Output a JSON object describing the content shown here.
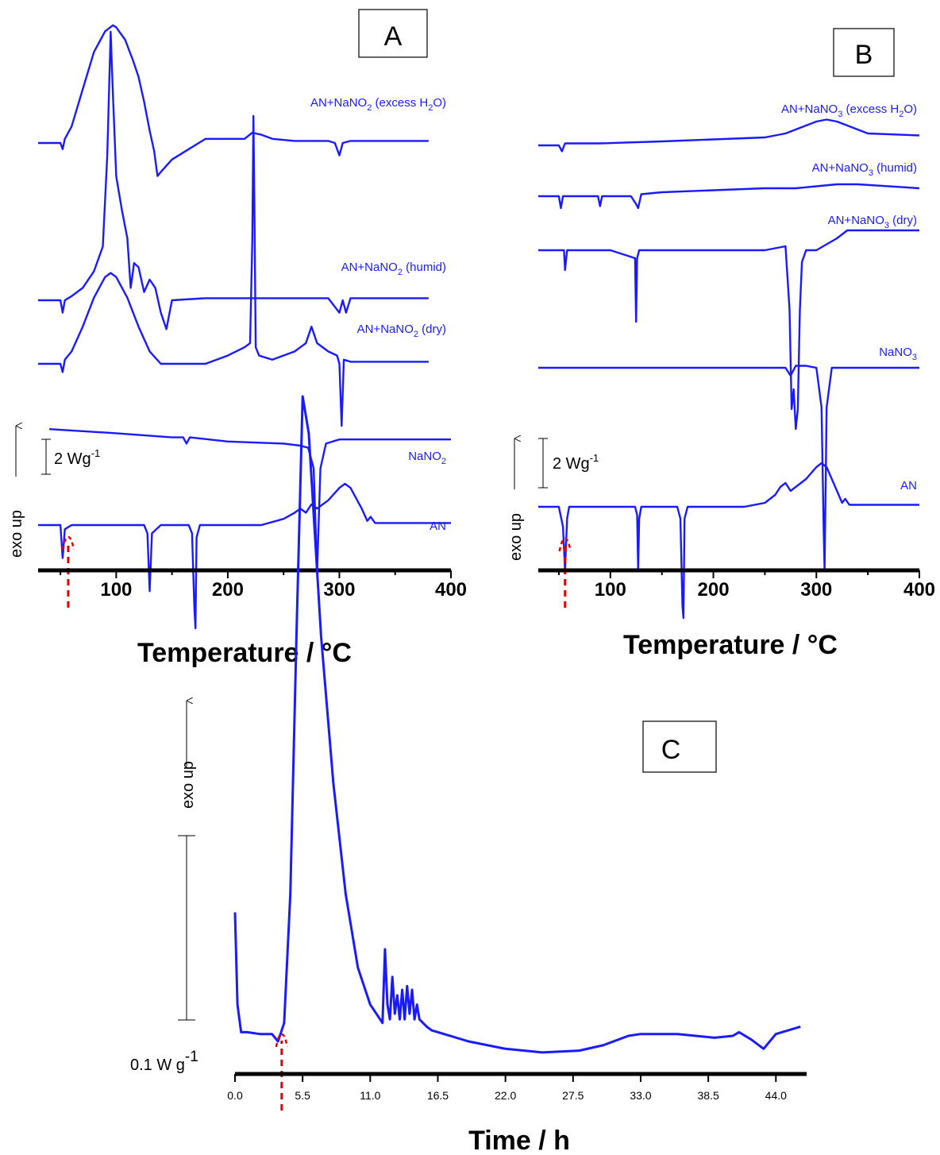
{
  "colors": {
    "trace": "#1a1aff",
    "onset_arrow": "#e00000",
    "axis": "#000000"
  },
  "panels": {
    "A": {
      "letter": "A",
      "xlabel": "Temperature / °C",
      "scale_bar": "2 Wg",
      "scale_sup": "-1",
      "exo": "exo up"
    },
    "B": {
      "letter": "B",
      "xlabel": "Temperature / °C",
      "scale_bar": "2 Wg",
      "scale_sup": "-1",
      "exo": "exo up"
    },
    "C": {
      "letter": "C",
      "xlabel": "Time / h",
      "scale_bar": "0.1 W g",
      "scale_sup": "-1",
      "exo": "exo up"
    }
  },
  "series_labels": {
    "A": [
      {
        "id": "a_excess",
        "main": "AN+NaNO",
        "sub1": "2",
        "mid": "  (excess H",
        "sub2": "2",
        "tail": "O)"
      },
      {
        "id": "a_humid",
        "main": "AN+NaNO",
        "sub1": "2",
        "mid": "  (humid)",
        "sub2": "",
        "tail": ""
      },
      {
        "id": "a_dry",
        "main": "AN+NaNO",
        "sub1": "2",
        "mid": "  (dry)",
        "sub2": "",
        "tail": ""
      },
      {
        "id": "a_nano2",
        "main": "NaNO",
        "sub1": "2",
        "mid": "",
        "sub2": "",
        "tail": ""
      },
      {
        "id": "a_an",
        "main": "AN",
        "sub1": "",
        "mid": "",
        "sub2": "",
        "tail": ""
      }
    ],
    "B": [
      {
        "id": "b_excess",
        "main": "AN+NaNO",
        "sub1": "3",
        "mid": "  (excess H",
        "sub2": "2",
        "tail": "O)"
      },
      {
        "id": "b_humid",
        "main": "AN+NaNO",
        "sub1": "3",
        "mid": "  (humid)",
        "sub2": "",
        "tail": ""
      },
      {
        "id": "b_dry",
        "main": "AN+NaNO",
        "sub1": "3",
        "mid": "  (dry)",
        "sub2": "",
        "tail": ""
      },
      {
        "id": "b_nano3",
        "main": "NaNO",
        "sub1": "3",
        "mid": "",
        "sub2": "",
        "tail": ""
      },
      {
        "id": "b_an",
        "main": "AN",
        "sub1": "",
        "mid": "",
        "sub2": "",
        "tail": ""
      }
    ]
  },
  "chart_data": [
    {
      "panel": "A",
      "type": "line",
      "xlabel": "Temperature / °C",
      "xlim": [
        30,
        400
      ],
      "xticks": [
        100,
        200,
        300,
        400
      ],
      "series": [
        {
          "name": "AN+NaNO2 (excess H2O)",
          "x": [
            30,
            50,
            52,
            54,
            60,
            70,
            80,
            90,
            97,
            100,
            108,
            115,
            120,
            125,
            130,
            134,
            137,
            140,
            150,
            165,
            180,
            200,
            215,
            222,
            230,
            240,
            260,
            280,
            290,
            296,
            300,
            303,
            310,
            330,
            380
          ],
          "y": [
            0,
            0,
            -0.15,
            0.1,
            0.4,
            1.3,
            2.2,
            2.7,
            2.85,
            2.8,
            2.5,
            2.0,
            1.6,
            1.0,
            0.3,
            -0.2,
            -0.8,
            -0.7,
            -0.4,
            -0.15,
            0.1,
            0.1,
            0.1,
            0.25,
            0.2,
            0.1,
            0.05,
            0.05,
            0.05,
            0,
            -0.3,
            0,
            0.05,
            0.05,
            0.05
          ]
        },
        {
          "name": "AN+NaNO2 (humid)",
          "x": [
            30,
            50,
            52,
            54,
            60,
            70,
            80,
            88,
            92,
            95,
            97,
            100,
            105,
            110,
            113,
            116,
            120,
            125,
            130,
            135,
            140,
            145,
            150,
            180,
            220,
            260,
            290,
            300,
            303,
            306,
            310,
            380
          ],
          "y": [
            0,
            0,
            -0.3,
            0,
            0.1,
            0.3,
            0.7,
            1.3,
            3.5,
            6.5,
            5.0,
            3.0,
            2.2,
            1.5,
            0.3,
            0.9,
            0.8,
            0.2,
            0.5,
            0.3,
            -0.3,
            -0.7,
            0,
            0.05,
            0.05,
            0.05,
            0.05,
            -0.3,
            0,
            -0.3,
            0.05,
            0.05
          ]
        },
        {
          "name": "AN+NaNO2 (dry)",
          "x": [
            30,
            50,
            52,
            54,
            60,
            70,
            80,
            90,
            95,
            100,
            110,
            120,
            130,
            140,
            145,
            160,
            180,
            200,
            215,
            220,
            222,
            223,
            224,
            225,
            228,
            240,
            260,
            270,
            275,
            280,
            290,
            298,
            300,
            302,
            304,
            310,
            330,
            380
          ],
          "y": [
            0,
            0,
            -0.2,
            0.1,
            0.3,
            0.9,
            1.6,
            2.1,
            2.2,
            2.1,
            1.6,
            0.9,
            0.3,
            0,
            0,
            0,
            0,
            0.2,
            0.4,
            0.5,
            3.0,
            6.0,
            3.5,
            0.4,
            0.2,
            0.1,
            0.3,
            0.5,
            0.9,
            0.5,
            0.3,
            0.2,
            0,
            -1.5,
            0.1,
            0.05,
            0.05,
            0.05
          ]
        },
        {
          "name": "NaNO2",
          "x": [
            40,
            100,
            150,
            160,
            163,
            166,
            200,
            250,
            265,
            272,
            277,
            280,
            283,
            288,
            300,
            350,
            400
          ],
          "y": [
            0.15,
            0.05,
            -0.05,
            -0.05,
            -0.2,
            -0.05,
            -0.15,
            -0.2,
            -0.25,
            -0.3,
            -0.8,
            -3.3,
            -0.8,
            -0.2,
            -0.1,
            -0.1,
            -0.1
          ]
        },
        {
          "name": "AN",
          "x": [
            30,
            50,
            52,
            54,
            60,
            100,
            125,
            128,
            130,
            132,
            140,
            165,
            168,
            170,
            171,
            172,
            175,
            200,
            230,
            250,
            260,
            265,
            270,
            275,
            280,
            290,
            300,
            305,
            310,
            320,
            325,
            328,
            332,
            360,
            400
          ],
          "y": [
            0,
            0,
            -0.8,
            -0.1,
            0,
            0,
            0,
            -0.2,
            -1.6,
            -0.2,
            0,
            0,
            -0.2,
            -2.0,
            -2.5,
            -0.3,
            0,
            0,
            0,
            0.15,
            0.3,
            0.4,
            0.3,
            0.5,
            0.4,
            0.6,
            0.9,
            1.0,
            0.9,
            0.4,
            0.1,
            0.2,
            0.05,
            0.05,
            0.05
          ]
        }
      ],
      "onset_arrow_x": 57
    },
    {
      "panel": "B",
      "type": "line",
      "xlabel": "Temperature / °C",
      "xlim": [
        30,
        400
      ],
      "xticks": [
        100,
        200,
        300,
        400
      ],
      "series": [
        {
          "name": "AN+NaNO3 (excess H2O)",
          "x": [
            30,
            50,
            53,
            56,
            60,
            90,
            150,
            200,
            250,
            270,
            290,
            300,
            310,
            320,
            330,
            350,
            400
          ],
          "y": [
            0,
            0,
            -0.15,
            0.05,
            0.05,
            0.05,
            0.1,
            0.15,
            0.2,
            0.3,
            0.5,
            0.6,
            0.65,
            0.6,
            0.5,
            0.3,
            0.25
          ]
        },
        {
          "name": "AN+NaNO3 (humid)",
          "x": [
            30,
            50,
            52,
            54,
            60,
            88,
            90,
            92,
            100,
            120,
            125,
            127,
            130,
            150,
            200,
            250,
            280,
            300,
            320,
            340,
            400
          ],
          "y": [
            0,
            0,
            -0.3,
            0,
            0,
            0,
            -0.25,
            0,
            0,
            0,
            -0.2,
            -0.3,
            0.05,
            0.1,
            0.15,
            0.2,
            0.2,
            0.25,
            0.3,
            0.3,
            0.2
          ]
        },
        {
          "name": "AN+NaNO3 (dry)",
          "x": [
            30,
            55,
            56,
            58,
            60,
            100,
            124,
            125,
            126,
            128,
            130,
            200,
            250,
            270,
            274,
            276,
            278,
            280,
            282,
            284,
            286,
            290,
            300,
            320,
            330,
            400
          ],
          "y": [
            0,
            0,
            -0.5,
            0,
            0,
            0,
            -0.2,
            -1.8,
            -0.2,
            0,
            0,
            0,
            0,
            0.1,
            -1.5,
            -4.0,
            -3.5,
            -4.5,
            -4.0,
            -1.5,
            -0.3,
            0,
            0,
            0.3,
            0.5,
            0.5
          ]
        },
        {
          "name": "NaNO3",
          "x": [
            30,
            100,
            200,
            260,
            270,
            275,
            280,
            290,
            300,
            305,
            307,
            308,
            310,
            315,
            320,
            400
          ],
          "y": [
            0,
            0,
            0,
            0,
            0,
            -0.2,
            0.05,
            0.05,
            0,
            -1.0,
            -4.0,
            -5.1,
            -1.0,
            0,
            0,
            0
          ]
        },
        {
          "name": "AN",
          "x": [
            30,
            50,
            54,
            56,
            58,
            60,
            100,
            124,
            126,
            127,
            128,
            130,
            140,
            165,
            168,
            170,
            171,
            172,
            175,
            200,
            230,
            250,
            260,
            265,
            270,
            275,
            280,
            290,
            300,
            305,
            310,
            320,
            325,
            328,
            332,
            360,
            400
          ],
          "y": [
            0,
            0,
            -0.5,
            -1.6,
            -0.3,
            0,
            0,
            0,
            -0.2,
            -1.6,
            -0.3,
            0,
            0,
            0,
            -0.3,
            -2.5,
            -2.8,
            -0.3,
            0,
            0,
            0,
            0.1,
            0.3,
            0.5,
            0.6,
            0.4,
            0.5,
            0.7,
            1.0,
            1.1,
            1.0,
            0.4,
            0.1,
            0.2,
            0.05,
            0.05,
            0.05
          ]
        }
      ],
      "onset_arrow_x": 56
    },
    {
      "panel": "C",
      "type": "line",
      "xlabel": "Time / h",
      "xlim": [
        0,
        46.5
      ],
      "xticks": [
        0.0,
        5.5,
        11.0,
        16.5,
        22.0,
        27.5,
        33.0,
        38.5,
        44.0
      ],
      "series": [
        {
          "name": "",
          "x": [
            0,
            0.2,
            0.5,
            1,
            2,
            3,
            3.5,
            4,
            4.5,
            5,
            5.5,
            6,
            7,
            8,
            9,
            10,
            11,
            11.5,
            12,
            12.2,
            12.4,
            12.6,
            12.8,
            13,
            13.2,
            13.4,
            13.6,
            13.8,
            14,
            14.2,
            14.4,
            14.6,
            14.8,
            15,
            15.3,
            15.6,
            16,
            17,
            19,
            22,
            25,
            28,
            30,
            32,
            33,
            36,
            39,
            40.5,
            41,
            42,
            43,
            44,
            45,
            46
          ],
          "y": [
            0.07,
            0.02,
            0.005,
            0.005,
            0.004,
            0.004,
            0.0,
            0.01,
            0.08,
            0.22,
            0.35,
            0.33,
            0.22,
            0.14,
            0.08,
            0.04,
            0.02,
            0.015,
            0.01,
            0.05,
            0.02,
            0.012,
            0.035,
            0.015,
            0.025,
            0.012,
            0.028,
            0.012,
            0.03,
            0.015,
            0.028,
            0.012,
            0.02,
            0.012,
            0.01,
            0.008,
            0.006,
            0.004,
            0.0,
            -0.004,
            -0.006,
            -0.005,
            -0.002,
            0.003,
            0.004,
            0.004,
            0.002,
            0.003,
            0.005,
            0.001,
            -0.004,
            0.004,
            0.006,
            0.008
          ]
        }
      ],
      "scale_bar_value": 0.1,
      "onset_arrow_x": 3.8
    }
  ]
}
